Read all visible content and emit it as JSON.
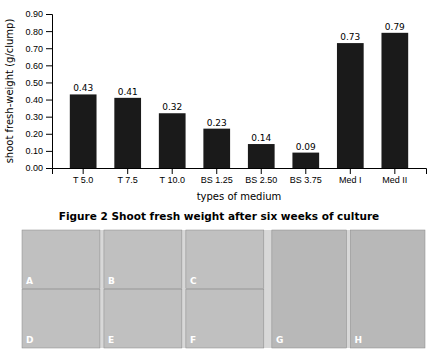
{
  "chart_data": {
    "type": "bar",
    "title": "Figure 2 Shoot fresh weight after six weeks of culture",
    "categories": [
      "T 5.0",
      "T 7.5",
      "T 10.0",
      "BS 1.25",
      "BS 2.50",
      "BS 3.75",
      "Med I",
      "Med II"
    ],
    "values": [
      0.43,
      0.41,
      0.32,
      0.23,
      0.14,
      0.09,
      0.73,
      0.79
    ],
    "color": "#1a1a1a",
    "ylabel": "shoot fresh-weight (g/clump)",
    "xlabel": "types of medium",
    "ylim": [
      0.0,
      0.9
    ],
    "yticks": [
      {
        "value": 0.0,
        "label": "0.00"
      },
      {
        "value": 0.1,
        "label": "0.10"
      },
      {
        "value": 0.2,
        "label": "0.20"
      },
      {
        "value": 0.3,
        "label": "0.30"
      },
      {
        "value": 0.4,
        "label": "0.40"
      },
      {
        "value": 0.5,
        "label": "0.50"
      },
      {
        "value": 0.6,
        "label": "0.60"
      },
      {
        "value": 0.7,
        "label": "0.70"
      },
      {
        "value": 0.8,
        "label": "0.80"
      },
      {
        "value": 0.9,
        "label": "0.90"
      }
    ],
    "grid": false,
    "data_labels": true,
    "annotations": [
      "A",
      "B",
      "C",
      "D",
      "E",
      "F",
      "G",
      "H"
    ]
  }
}
